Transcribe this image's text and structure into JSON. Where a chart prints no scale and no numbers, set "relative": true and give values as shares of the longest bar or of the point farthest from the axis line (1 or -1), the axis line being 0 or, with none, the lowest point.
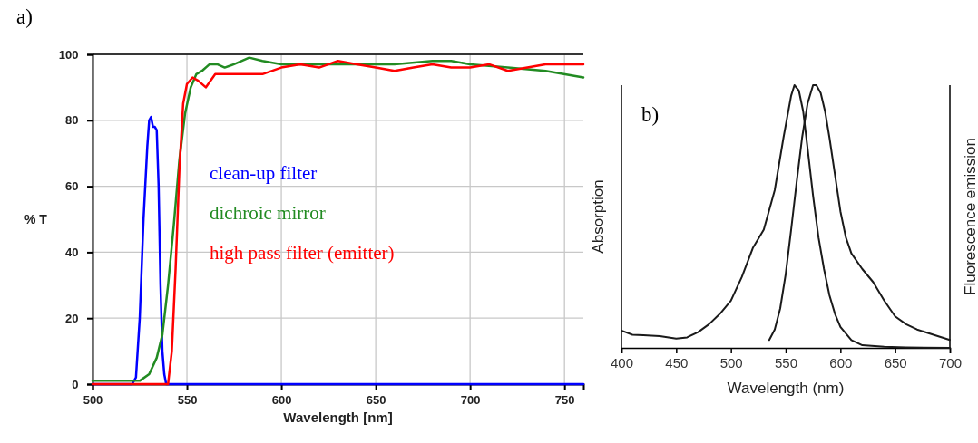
{
  "chart_data": [
    {
      "type": "line",
      "xlabel": "Wavelength [nm]",
      "ylabel": "% T",
      "annotations": [
        "a)"
      ],
      "xlim": [
        500,
        760
      ],
      "xticks": [
        500,
        550,
        600,
        650,
        700,
        750
      ],
      "ylim": [
        0,
        100
      ],
      "yticks": [
        0,
        20,
        40,
        60,
        80,
        100
      ],
      "grid": true,
      "legend": "left",
      "marker": "none",
      "line_style": "solid",
      "series": [
        {
          "name": "clean-up filter",
          "color": "#0000ff",
          "x": [
            500,
            521,
            523,
            525,
            527,
            529,
            530,
            531,
            532,
            533,
            534,
            535,
            536,
            537,
            538,
            539,
            540,
            560,
            600,
            650,
            700,
            760
          ],
          "values": [
            0,
            0,
            2,
            20,
            50,
            72,
            80,
            81,
            78,
            78,
            77,
            60,
            30,
            10,
            3,
            0,
            0,
            0,
            0,
            0,
            0,
            0
          ]
        },
        {
          "name": "dichroic mirror",
          "color": "#228b22",
          "x": [
            500,
            520,
            525,
            530,
            534,
            537,
            540,
            543,
            546,
            549,
            552,
            555,
            558,
            562,
            566,
            570,
            575,
            583,
            590,
            600,
            620,
            640,
            660,
            680,
            690,
            700,
            720,
            740,
            760
          ],
          "values": [
            1,
            1,
            1,
            3,
            8,
            15,
            30,
            48,
            68,
            82,
            90,
            94,
            95,
            97,
            97,
            96,
            97,
            99,
            98,
            97,
            97,
            97,
            97,
            98,
            98,
            97,
            96,
            95,
            93
          ]
        },
        {
          "name": "high pass filter (emitter)",
          "color": "#ff0000",
          "x": [
            500,
            540,
            542,
            544,
            546,
            548,
            550,
            553,
            556,
            560,
            565,
            570,
            580,
            590,
            600,
            610,
            620,
            630,
            640,
            650,
            660,
            670,
            680,
            690,
            700,
            710,
            720,
            740,
            760
          ],
          "values": [
            0,
            0,
            10,
            35,
            65,
            85,
            91,
            93,
            92,
            90,
            94,
            94,
            94,
            94,
            96,
            97,
            96,
            98,
            97,
            96,
            95,
            96,
            97,
            96,
            96,
            97,
            95,
            97,
            97
          ]
        }
      ]
    },
    {
      "type": "line",
      "xlabel": "Wavelength (nm)",
      "ylabel": "Absorption",
      "y2label": "Fluorescence emission",
      "annotations": [
        "b)"
      ],
      "xlim": [
        400,
        700
      ],
      "xticks": [
        400,
        450,
        500,
        550,
        600,
        650,
        700
      ],
      "relative": true,
      "marker": "none",
      "line_style": "solid",
      "series": [
        {
          "color": "#1a1a1a",
          "x": [
            400,
            410,
            420,
            435,
            450,
            460,
            470,
            480,
            490,
            500,
            510,
            520,
            530,
            540,
            548,
            555,
            558,
            562,
            566,
            570,
            575,
            580,
            585,
            590,
            595,
            600,
            610,
            620,
            640,
            660,
            700
          ],
          "values": [
            0.066,
            0.05,
            0.048,
            0.045,
            0.035,
            0.04,
            0.06,
            0.09,
            0.13,
            0.18,
            0.27,
            0.38,
            0.45,
            0.6,
            0.8,
            0.96,
            1,
            0.98,
            0.9,
            0.76,
            0.58,
            0.42,
            0.3,
            0.2,
            0.13,
            0.08,
            0.03,
            0.01,
            0.004,
            0.002,
            0
          ]
        },
        {
          "color": "#1a1a1a",
          "axis": "y2",
          "x": [
            535,
            540,
            545,
            550,
            555,
            560,
            565,
            570,
            575,
            578,
            582,
            586,
            590,
            595,
            600,
            605,
            610,
            620,
            630,
            640,
            650,
            660,
            670,
            685,
            700
          ],
          "values": [
            0.03,
            0.07,
            0.15,
            0.28,
            0.45,
            0.63,
            0.8,
            0.93,
            1,
            1,
            0.97,
            0.9,
            0.8,
            0.66,
            0.52,
            0.42,
            0.36,
            0.3,
            0.25,
            0.18,
            0.12,
            0.09,
            0.07,
            0.05,
            0.03
          ]
        }
      ]
    }
  ]
}
